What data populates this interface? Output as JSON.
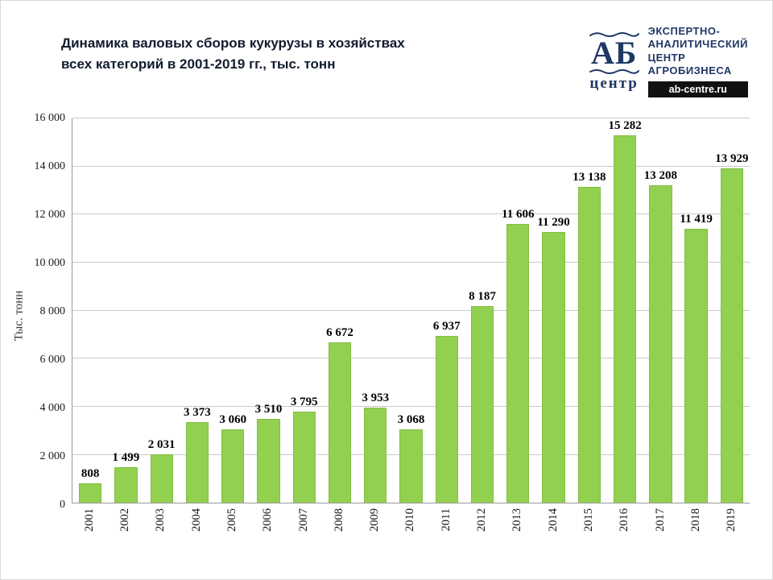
{
  "header": {
    "title_line1": "Динамика валовых сборов кукурузы в хозяйствах",
    "title_line2": "всех категорий в 2001-2019 гг., тыс. тонн",
    "logo": {
      "ab": "АБ",
      "centre": "центр",
      "org_line1": "ЭКСПЕРТНО-",
      "org_line2": "АНАЛИТИЧЕСКИЙ",
      "org_line3": "ЦЕНТР",
      "org_line4": "АГРОБИЗНЕСА",
      "site": "ab-centre.ru",
      "brand_color": "#1f3864"
    }
  },
  "chart_data": {
    "type": "bar",
    "title": "Динамика валовых сборов кукурузы в хозяйствах всех категорий в 2001-2019 гг., тыс. тонн",
    "xlabel": "",
    "ylabel": "Тыс. тонн",
    "ylim": [
      0,
      16000
    ],
    "ytick_step": 2000,
    "ytick_labels": [
      "0",
      "2 000",
      "4 000",
      "6 000",
      "8 000",
      "10 000",
      "12 000",
      "14 000",
      "16 000"
    ],
    "grid": true,
    "legend": "none",
    "bar_color": "#92d050",
    "bar_border_color": "#84bd45",
    "categories": [
      "2001",
      "2002",
      "2003",
      "2004",
      "2005",
      "2006",
      "2007",
      "2008",
      "2009",
      "2010",
      "2011",
      "2012",
      "2013",
      "2014",
      "2015",
      "2016",
      "2017",
      "2018",
      "2019"
    ],
    "values": [
      808,
      1499,
      2031,
      3373,
      3060,
      3510,
      3795,
      6672,
      3953,
      3068,
      6937,
      8187,
      11606,
      11290,
      13138,
      15282,
      13208,
      11419,
      13929
    ],
    "value_labels": [
      "808",
      "1 499",
      "2 031",
      "3 373",
      "3 060",
      "3 510",
      "3 795",
      "6 672",
      "3 953",
      "3 068",
      "6 937",
      "8 187",
      "11 606",
      "11 290",
      "13 138",
      "15 282",
      "13 208",
      "11 419",
      "13 929"
    ]
  }
}
